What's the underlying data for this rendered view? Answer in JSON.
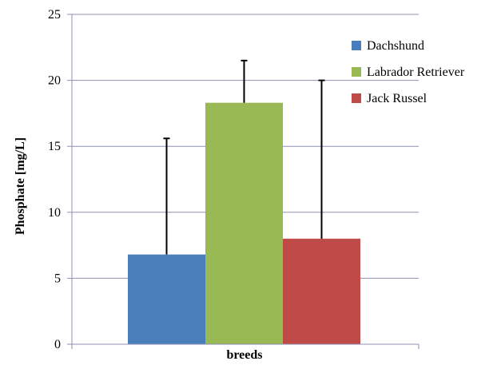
{
  "chart_data": {
    "type": "bar",
    "categories": [
      "breeds"
    ],
    "series": [
      {
        "name": "Dachshund",
        "values": [
          6.8
        ],
        "error": [
          8.8
        ],
        "color": "#4a7ebb"
      },
      {
        "name": "Labrador Retriever",
        "values": [
          18.3
        ],
        "error": [
          3.2
        ],
        "color": "#98b954"
      },
      {
        "name": "Jack Russel",
        "values": [
          8.0
        ],
        "error": [
          12.0
        ],
        "color": "#be4b48"
      }
    ],
    "title": "",
    "xlabel": "breeds",
    "ylabel": "Phosphate [mg/L]",
    "ylim": [
      0,
      25
    ],
    "yticks": [
      "0",
      "5",
      "10",
      "15",
      "20",
      "25"
    ],
    "grid": true,
    "legend_position": "right",
    "colors": {
      "gridline": "#8c8fb3",
      "axis": "#8c8fb3",
      "error_bar": "#000000"
    }
  }
}
